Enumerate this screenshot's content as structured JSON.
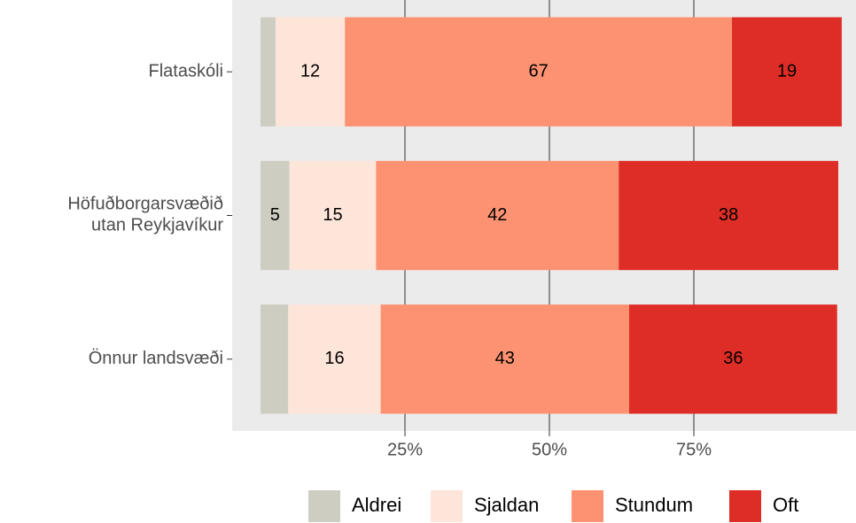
{
  "chart_data": {
    "type": "stacked-barh",
    "categories": [
      "Flataskóli",
      "Höfuðborgarsvæðið\nutan Reykjavíkur",
      "Önnur landsvæði"
    ],
    "series": [
      {
        "name": "Aldrei",
        "color": "#cdcec1",
        "values": [
          2.6,
          5,
          4.8
        ],
        "value_labels": [
          null,
          "5",
          null
        ]
      },
      {
        "name": "Sjaldan",
        "color": "#fee5d9",
        "values": [
          12,
          15,
          16
        ],
        "value_labels": [
          "12",
          "15",
          "16"
        ]
      },
      {
        "name": "Stundum",
        "color": "#fc9272",
        "values": [
          67,
          42,
          43
        ],
        "value_labels": [
          "67",
          "42",
          "43"
        ]
      },
      {
        "name": "Oft",
        "color": "#de2d26",
        "values": [
          19,
          38,
          36
        ],
        "value_labels": [
          "19",
          "38",
          "36"
        ]
      }
    ],
    "xlim": [
      0,
      100
    ],
    "xticks": [
      {
        "value": 25,
        "label": "25%"
      },
      {
        "value": 50,
        "label": "50%"
      },
      {
        "value": 75,
        "label": "75%"
      }
    ],
    "grid": true,
    "legend": "bottom"
  }
}
